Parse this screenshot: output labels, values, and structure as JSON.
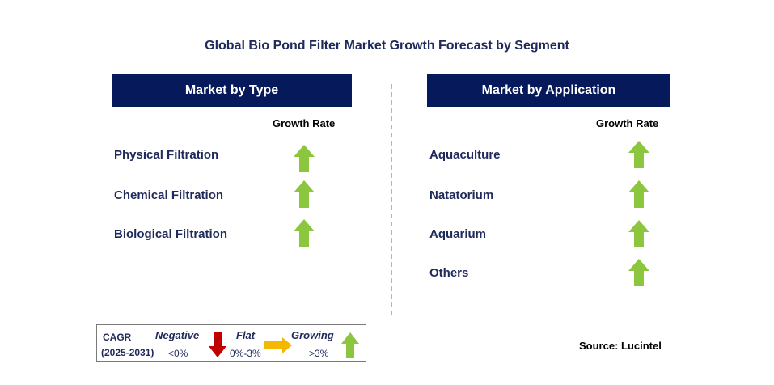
{
  "title": "Global Bio Pond Filter Market Growth Forecast by Segment",
  "left": {
    "header": "Market by Type",
    "growth_label": "Growth Rate",
    "items": [
      {
        "label": "Physical Filtration",
        "trend": "growing"
      },
      {
        "label": "Chemical Filtration",
        "trend": "growing"
      },
      {
        "label": "Biological Filtration",
        "trend": "growing"
      }
    ]
  },
  "right": {
    "header": "Market by Application",
    "growth_label": "Growth Rate",
    "items": [
      {
        "label": "Aquaculture",
        "trend": "growing"
      },
      {
        "label": "Natatorium",
        "trend": "growing"
      },
      {
        "label": "Aquarium",
        "trend": "growing"
      },
      {
        "label": "Others",
        "trend": "growing"
      }
    ]
  },
  "legend": {
    "cagr_label": "CAGR",
    "period": "(2025-2031)",
    "negative_label": "Negative",
    "negative_value": "<0%",
    "flat_label": "Flat",
    "flat_value": "0%-3%",
    "growing_label": "Growing",
    "growing_value": ">3%"
  },
  "source": "Source: Lucintel",
  "colors": {
    "header_bg": "#06195a",
    "growing_arrow": "#8cc63f",
    "negative_arrow": "#c00000",
    "flat_arrow": "#f5b800",
    "divider": "#f5b800"
  }
}
